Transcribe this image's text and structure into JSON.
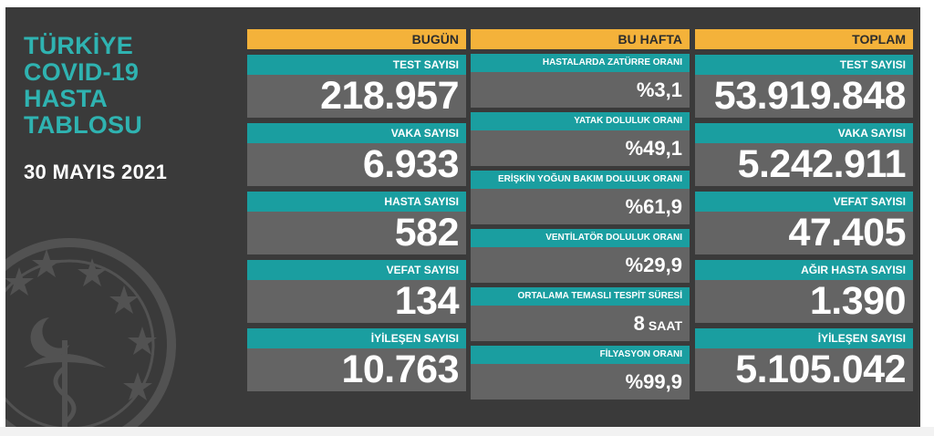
{
  "side": {
    "title_lines": [
      "TÜRKİYE",
      "COVID-19",
      "HASTA",
      "TABLOSU"
    ],
    "date": "30 MAYIS 2021"
  },
  "today": {
    "header": "BUGÜN",
    "cards": [
      {
        "label": "TEST SAYISI",
        "value": "218.957"
      },
      {
        "label": "VAKA SAYISI",
        "value": "6.933"
      },
      {
        "label": "HASTA SAYISI",
        "value": "582"
      },
      {
        "label": "VEFAT SAYISI",
        "value": "134"
      },
      {
        "label": "İYİLEŞEN SAYISI",
        "value": "10.763"
      }
    ]
  },
  "week": {
    "header": "BU HAFTA",
    "cards": [
      {
        "label": "HASTALARDA ZATÜRRE ORANI",
        "value": "%3,1"
      },
      {
        "label": "YATAK DOLULUK ORANI",
        "value": "%49,1"
      },
      {
        "label": "ERİŞKİN YOĞUN BAKIM DOLULUK ORANI",
        "value": "%61,9"
      },
      {
        "label": "VENTİLATÖR DOLULUK ORANI",
        "value": "%29,9"
      },
      {
        "label": "ORTALAMA TEMASLI TESPİT SÜRESİ",
        "value": "8",
        "unit": "SAAT"
      },
      {
        "label": "FİLYASYON ORANI",
        "value": "%99,9"
      }
    ]
  },
  "total": {
    "header": "TOPLAM",
    "cards": [
      {
        "label": "TEST SAYISI",
        "value": "53.919.848"
      },
      {
        "label": "VAKA SAYISI",
        "value": "5.242.911"
      },
      {
        "label": "VEFAT SAYISI",
        "value": "47.405"
      },
      {
        "label": "AĞIR HASTA SAYISI",
        "value": "1.390"
      },
      {
        "label": "İYİLEŞEN SAYISI",
        "value": "5.105.042"
      }
    ]
  },
  "colors": {
    "background": "#3a3a3a",
    "accent_orange": "#f4b23a",
    "accent_teal": "#1a9ea0",
    "title_teal": "#2fb3b1",
    "card_gray": "#646464"
  },
  "icons": [
    "ministry-emblem-icon"
  ]
}
